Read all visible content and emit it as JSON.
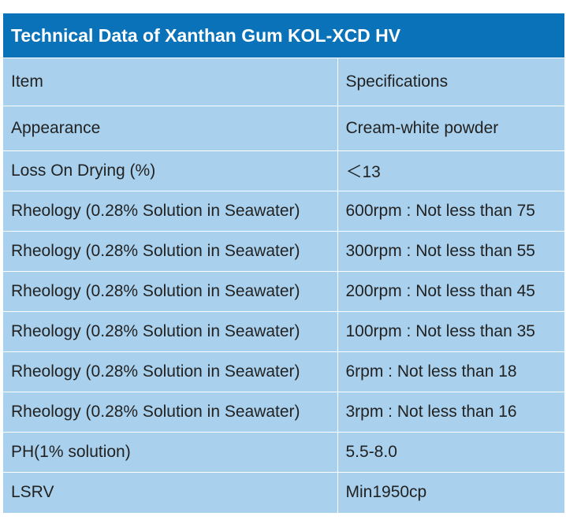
{
  "title": "Technical Data of Xanthan Gum KOL-XCD HV",
  "header": {
    "item": "Item",
    "spec": "Specifications"
  },
  "rows": [
    {
      "item": "Appearance",
      "spec": "Cream-white powder"
    },
    {
      "item": "Loss On Drying (%)",
      "spec": "＜13"
    },
    {
      "item": "Rheology (0.28% Solution in Seawater)",
      "spec": "600rpm : Not less than 75"
    },
    {
      "item": "Rheology (0.28% Solution in Seawater)",
      "spec": "300rpm : Not less than 55"
    },
    {
      "item": "Rheology (0.28% Solution in Seawater)",
      "spec": "200rpm : Not less than 45"
    },
    {
      "item": "Rheology (0.28% Solution in Seawater)",
      "spec": "100rpm : Not less than 35"
    },
    {
      "item": "Rheology (0.28% Solution in Seawater)",
      "spec": "6rpm : Not less than 18"
    },
    {
      "item": "Rheology (0.28% Solution in Seawater)",
      "spec": "3rpm : Not less than 16"
    },
    {
      "item": "PH(1% solution)",
      "spec": "5.5-8.0"
    },
    {
      "item": "LSRV",
      "spec": "Min1950cp"
    }
  ],
  "colors": {
    "title_bg": "#0a72b8",
    "cell_bg": "#a9d0ec",
    "title_text": "#ffffff",
    "cell_text": "#222222"
  }
}
